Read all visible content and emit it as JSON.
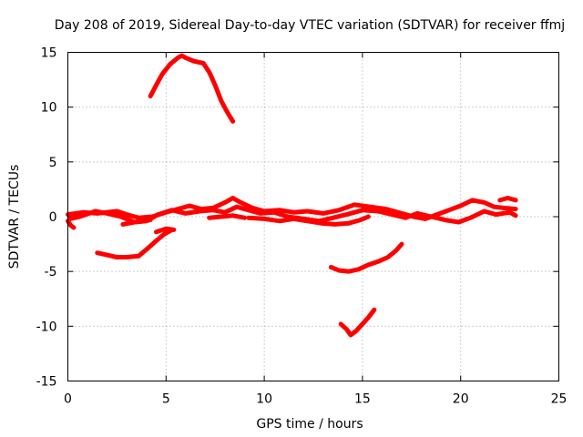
{
  "chart_data": {
    "type": "scatter",
    "title": "Day 208 of 2019, Sidereal Day-to-day VTEC variation (SDTVAR) for receiver ffmj",
    "xlabel": "GPS time / hours",
    "ylabel": "SDTVAR / TECUs",
    "xlim": [
      0,
      25
    ],
    "ylim": [
      -15,
      15
    ],
    "xticks": [
      0,
      5,
      10,
      15,
      20,
      25
    ],
    "yticks": [
      -15,
      -10,
      -5,
      0,
      5,
      10,
      15
    ],
    "xtick_labels": [
      "0",
      "5",
      "10",
      "15",
      "20",
      "25"
    ],
    "ytick_labels": [
      "-15",
      "-10",
      "-5",
      "0",
      "5",
      "10",
      "15"
    ],
    "grid": true,
    "legend": "none",
    "color": "#ff0000",
    "series": [
      {
        "name": "arc-high",
        "points": [
          [
            4.2,
            11.0
          ],
          [
            4.5,
            12.0
          ],
          [
            4.8,
            13.0
          ],
          [
            5.2,
            13.9
          ],
          [
            5.6,
            14.5
          ],
          [
            5.8,
            14.7
          ],
          [
            6.0,
            14.5
          ],
          [
            6.4,
            14.2
          ],
          [
            6.9,
            14.0
          ],
          [
            7.2,
            13.2
          ],
          [
            7.5,
            12.0
          ],
          [
            7.8,
            10.6
          ],
          [
            8.1,
            9.6
          ],
          [
            8.4,
            8.7
          ]
        ]
      },
      {
        "name": "arc-near-zero-a",
        "points": [
          [
            0.0,
            0.2
          ],
          [
            0.8,
            0.4
          ],
          [
            1.5,
            0.3
          ],
          [
            2.5,
            0.5
          ],
          [
            3.0,
            0.2
          ],
          [
            3.6,
            -0.1
          ],
          [
            4.3,
            0.0
          ],
          [
            5.0,
            0.4
          ],
          [
            5.6,
            0.7
          ],
          [
            6.2,
            1.0
          ],
          [
            6.8,
            0.7
          ],
          [
            7.4,
            0.8
          ],
          [
            8.0,
            1.3
          ],
          [
            8.4,
            1.7
          ],
          [
            8.8,
            1.3
          ],
          [
            9.4,
            0.8
          ],
          [
            10.0,
            0.5
          ],
          [
            10.8,
            0.6
          ],
          [
            11.5,
            0.4
          ],
          [
            12.2,
            0.5
          ],
          [
            13.0,
            0.3
          ],
          [
            13.8,
            0.6
          ],
          [
            14.6,
            1.1
          ],
          [
            15.4,
            0.9
          ],
          [
            16.2,
            0.7
          ],
          [
            17.0,
            0.3
          ],
          [
            17.6,
            0.0
          ],
          [
            18.2,
            -0.2
          ],
          [
            18.8,
            0.2
          ],
          [
            19.4,
            0.6
          ],
          [
            20.0,
            1.0
          ],
          [
            20.6,
            1.5
          ],
          [
            21.2,
            1.3
          ],
          [
            21.7,
            0.9
          ],
          [
            22.2,
            0.8
          ],
          [
            22.8,
            0.7
          ]
        ]
      },
      {
        "name": "arc-near-zero-b",
        "points": [
          [
            0.1,
            -0.2
          ],
          [
            0.6,
            0.0
          ],
          [
            1.4,
            0.5
          ],
          [
            2.0,
            0.3
          ],
          [
            2.7,
            0.0
          ],
          [
            3.4,
            -0.5
          ],
          [
            4.0,
            -0.4
          ],
          [
            4.6,
            0.2
          ],
          [
            5.3,
            0.6
          ],
          [
            6.0,
            0.3
          ],
          [
            6.7,
            0.5
          ],
          [
            7.4,
            0.6
          ],
          [
            8.0,
            0.4
          ],
          [
            8.6,
            0.9
          ],
          [
            9.2,
            0.6
          ],
          [
            9.8,
            0.3
          ],
          [
            10.5,
            0.4
          ],
          [
            11.2,
            0.0
          ],
          [
            12.0,
            -0.2
          ],
          [
            12.8,
            -0.4
          ],
          [
            13.5,
            -0.1
          ],
          [
            14.2,
            0.2
          ],
          [
            15.0,
            0.6
          ],
          [
            15.8,
            0.5
          ],
          [
            16.5,
            0.2
          ],
          [
            17.2,
            -0.1
          ],
          [
            17.8,
            0.3
          ],
          [
            18.5,
            0.0
          ],
          [
            19.2,
            -0.3
          ],
          [
            19.9,
            -0.5
          ],
          [
            20.5,
            -0.1
          ],
          [
            21.2,
            0.5
          ],
          [
            21.8,
            0.2
          ],
          [
            22.5,
            0.4
          ],
          [
            22.8,
            0.1
          ]
        ]
      },
      {
        "name": "arc-near-zero-c",
        "points": [
          [
            2.8,
            -0.7
          ],
          [
            3.4,
            -0.5
          ],
          [
            3.9,
            -0.4
          ],
          [
            4.2,
            -0.3
          ]
        ]
      },
      {
        "name": "arc-near-zero-d",
        "points": [
          [
            7.2,
            -0.1
          ],
          [
            7.8,
            0.0
          ],
          [
            8.4,
            0.1
          ],
          [
            9.0,
            -0.1
          ]
        ]
      },
      {
        "name": "arc-near-zero-e",
        "points": [
          [
            9.2,
            -0.1
          ],
          [
            10.0,
            -0.2
          ],
          [
            10.8,
            -0.4
          ],
          [
            11.5,
            -0.2
          ],
          [
            12.2,
            -0.4
          ],
          [
            12.9,
            -0.6
          ],
          [
            13.6,
            -0.7
          ],
          [
            14.3,
            -0.6
          ],
          [
            14.9,
            -0.3
          ],
          [
            15.3,
            0.0
          ]
        ]
      },
      {
        "name": "arc-near-zero-f",
        "points": [
          [
            0.0,
            -0.4
          ],
          [
            0.15,
            -0.8
          ],
          [
            0.3,
            -1.0
          ]
        ]
      },
      {
        "name": "arc-near-zero-g",
        "points": [
          [
            22.0,
            1.5
          ],
          [
            22.4,
            1.7
          ],
          [
            22.8,
            1.5
          ]
        ]
      },
      {
        "name": "arc-low-a",
        "points": [
          [
            1.5,
            -3.3
          ],
          [
            2.0,
            -3.5
          ],
          [
            2.5,
            -3.7
          ],
          [
            3.0,
            -3.7
          ],
          [
            3.6,
            -3.6
          ],
          [
            4.0,
            -3.0
          ],
          [
            4.5,
            -2.2
          ],
          [
            4.9,
            -1.6
          ],
          [
            5.3,
            -1.2
          ]
        ]
      },
      {
        "name": "arc-low-a-tail",
        "points": [
          [
            4.5,
            -1.4
          ],
          [
            5.0,
            -1.1
          ],
          [
            5.4,
            -1.2
          ]
        ]
      },
      {
        "name": "arc-low-b",
        "points": [
          [
            13.4,
            -4.6
          ],
          [
            13.8,
            -4.9
          ],
          [
            14.3,
            -5.0
          ],
          [
            14.8,
            -4.8
          ],
          [
            15.3,
            -4.4
          ],
          [
            15.8,
            -4.1
          ],
          [
            16.3,
            -3.7
          ],
          [
            16.7,
            -3.1
          ],
          [
            17.0,
            -2.5
          ]
        ]
      },
      {
        "name": "arc-low-c",
        "points": [
          [
            13.9,
            -9.8
          ],
          [
            14.2,
            -10.3
          ],
          [
            14.4,
            -10.8
          ],
          [
            14.7,
            -10.4
          ],
          [
            15.0,
            -9.8
          ],
          [
            15.3,
            -9.2
          ],
          [
            15.6,
            -8.5
          ]
        ]
      }
    ]
  }
}
